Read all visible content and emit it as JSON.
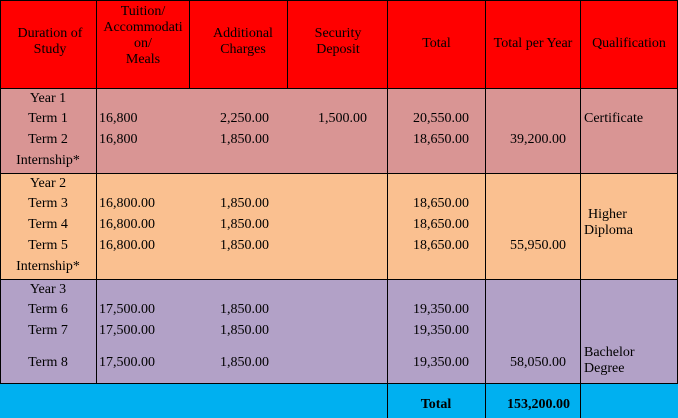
{
  "headers": {
    "duration": "Duration of Study",
    "tuition": [
      "Tuition/",
      "Accommodati",
      "on/",
      "Meals"
    ],
    "additional": "Additional Charges",
    "security": "Security Deposit",
    "total": "Total",
    "total_per_year": "Total per Year",
    "qualification": "Qualification"
  },
  "year1": {
    "label": "Year 1",
    "term1": {
      "label": "Term 1",
      "tuition": "16,800",
      "additional": "2,250.00",
      "security": "1,500.00",
      "total": "20,550.00"
    },
    "term2": {
      "label": "Term 2",
      "tuition": "16,800",
      "additional": "1,850.00",
      "total": "18,650.00"
    },
    "internship": "Internship*",
    "total_per_year": "39,200.00",
    "qualification": "Certificate"
  },
  "year2": {
    "label": "Year 2",
    "term3": {
      "label": "Term 3",
      "tuition": "16,800.00",
      "additional": "1,850.00",
      "total": "18,650.00"
    },
    "term4": {
      "label": "Term 4",
      "tuition": "16,800.00",
      "additional": "1,850.00",
      "total": "18,650.00"
    },
    "term5": {
      "label": "Term 5",
      "tuition": "16,800.00",
      "additional": "1,850.00",
      "total": "18,650.00"
    },
    "internship": "Internship*",
    "total_per_year": "55,950.00",
    "qualification": [
      "Higher",
      "Diploma"
    ]
  },
  "year3": {
    "label": "Year 3",
    "term6": {
      "label": "Term 6",
      "tuition": "17,500.00",
      "additional": "1,850.00",
      "total": "19,350.00"
    },
    "term7": {
      "label": "Term 7",
      "tuition": "17,500.00",
      "additional": "1,850.00",
      "total": "19,350.00"
    },
    "term8": {
      "label": "Term 8",
      "tuition": "17,500.00",
      "additional": "1,850.00",
      "total": "19,350.00"
    },
    "total_per_year": "58,050.00",
    "qualification": [
      "Bachelor",
      "Degree"
    ]
  },
  "footer": {
    "total_label": "Total",
    "grand_total": "153,200.00"
  },
  "colors": {
    "header_bg": "#ff0000",
    "year1_bg": "#d99594",
    "year2_bg": "#fac090",
    "year3_bg": "#b2a1c7",
    "footer_bg": "#00b0f0"
  }
}
